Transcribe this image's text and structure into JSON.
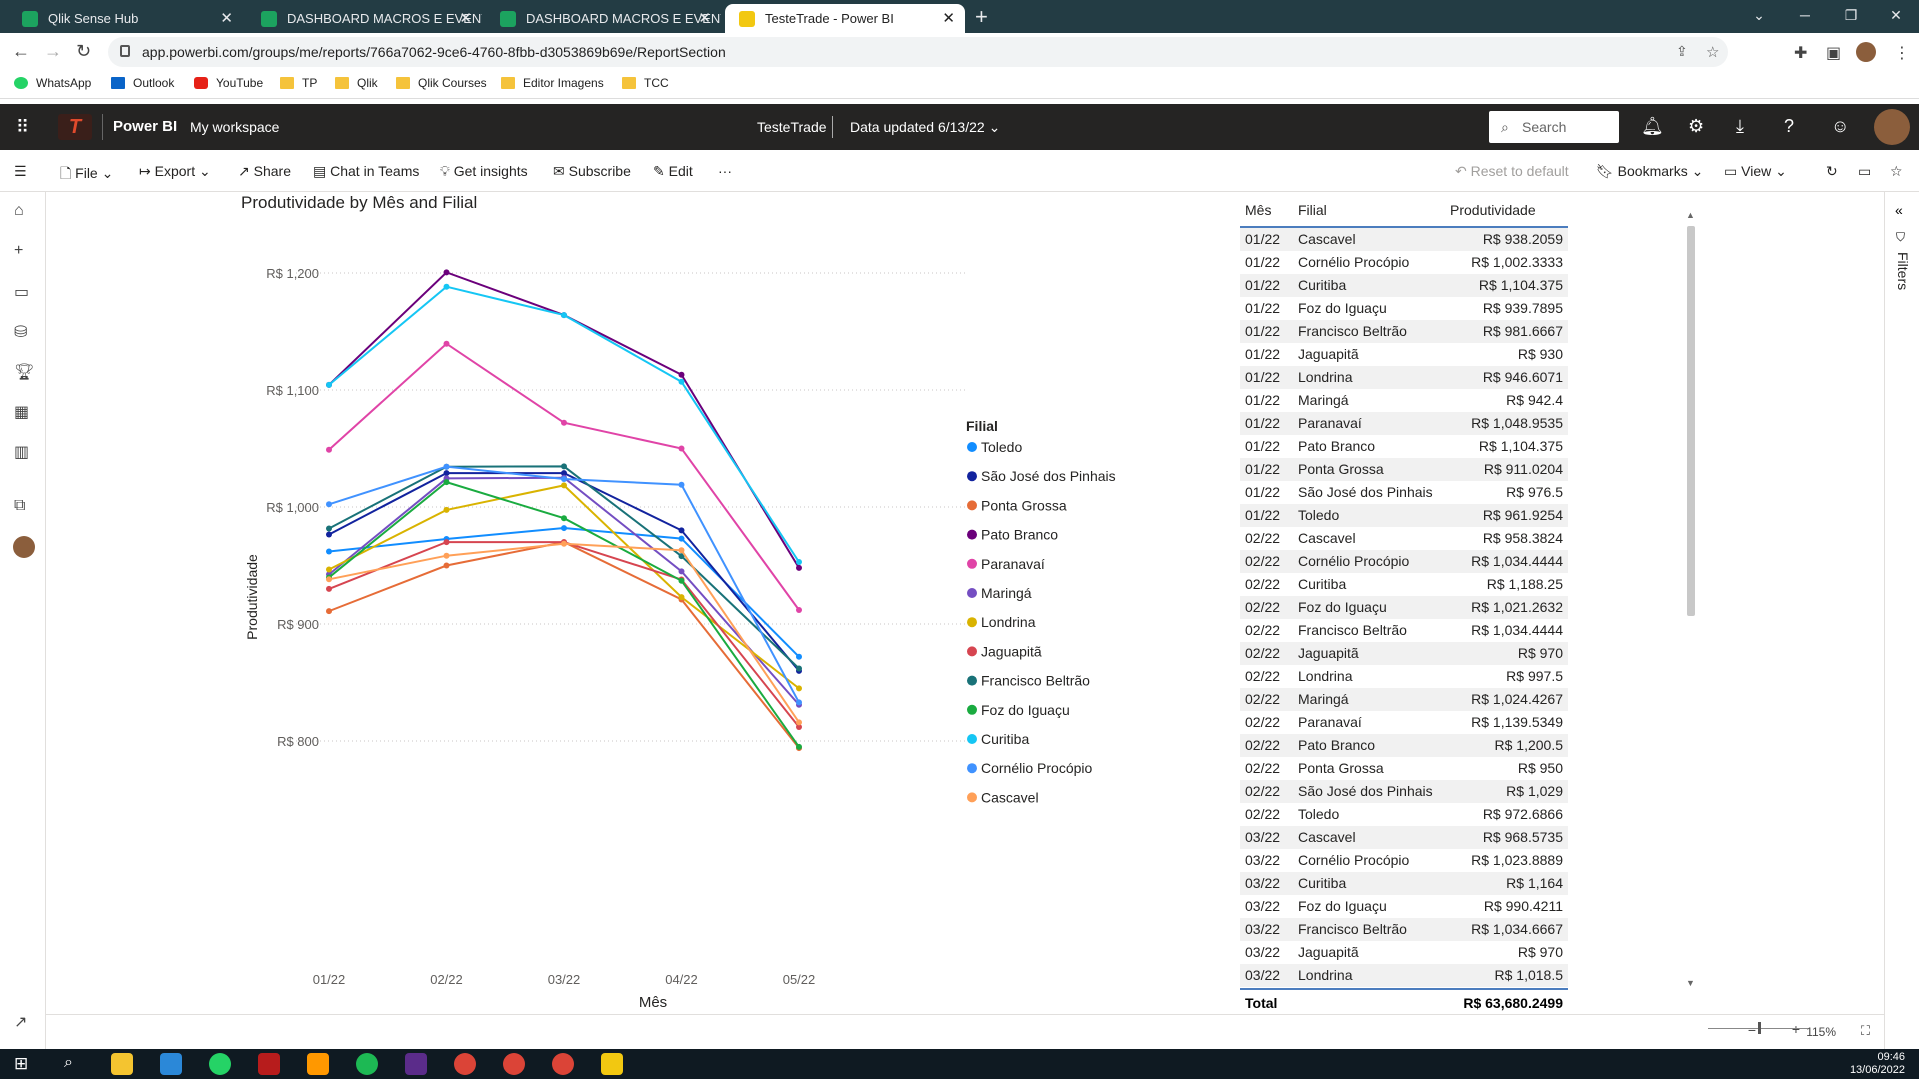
{
  "browser": {
    "tabs": [
      {
        "label": "Qlik Sense Hub"
      },
      {
        "label": "DASHBOARD MACROS E EVENTOS"
      },
      {
        "label": "DASHBOARD MACROS E EVENTOS"
      },
      {
        "label": "TesteTrade - Power BI"
      }
    ],
    "url": "app.powerbi.com/groups/me/reports/766a7062-9ce6-4760-8fbb-d3053869b69e/ReportSection",
    "bookmarks": [
      "WhatsApp",
      "Outlook",
      "YouTube",
      "TP",
      "Qlik",
      "Qlik Courses",
      "Editor Imagens",
      "TCC"
    ]
  },
  "header": {
    "app_name": "Power BI",
    "workspace": "My workspace",
    "report_name": "TesteTrade",
    "data_updated": "Data updated 6/13/22",
    "search_placeholder": "Search"
  },
  "actionbar": {
    "file": "File",
    "export": "Export",
    "share": "Share",
    "chat": "Chat in Teams",
    "insights": "Get insights",
    "subscribe": "Subscribe",
    "edit": "Edit",
    "more": "···",
    "reset": "Reset to default",
    "bookmarks": "Bookmarks",
    "view": "View"
  },
  "filters_label": "Filters",
  "chart_data": {
    "type": "line",
    "title": "Produtividade by Mês and Filial",
    "xlabel": "Mês",
    "ylabel": "Produtividade",
    "categories": [
      "01/22",
      "02/22",
      "03/22",
      "04/22",
      "05/22"
    ],
    "yticks": [
      "R$ 800",
      "R$ 900",
      "R$ 1,000",
      "R$ 1,100",
      "R$ 1,200"
    ],
    "ylim": [
      765,
      1235
    ],
    "legend_title": "Filial",
    "legend_position": "right",
    "grid": true,
    "series": [
      {
        "name": "Toledo",
        "color": "#118dff",
        "values": [
          961.9254,
          972.6866,
          982,
          973,
          872
        ]
      },
      {
        "name": "São José dos Pinhais",
        "color": "#12239e",
        "values": [
          976.5,
          1029,
          1029,
          980,
          860
        ]
      },
      {
        "name": "Ponta Grossa",
        "color": "#e66c37",
        "values": [
          911.0204,
          950,
          970,
          921,
          794
        ]
      },
      {
        "name": "Pato Branco",
        "color": "#6b007b",
        "values": [
          1104.375,
          1200.5,
          1164,
          1113,
          948
        ]
      },
      {
        "name": "Paranavaí",
        "color": "#e044a7",
        "values": [
          1048.9535,
          1139.5349,
          1072,
          1050,
          912
        ]
      },
      {
        "name": "Maringá",
        "color": "#744ec2",
        "values": [
          942.4,
          1024.4267,
          1025,
          945,
          831
        ]
      },
      {
        "name": "Londrina",
        "color": "#d9b300",
        "values": [
          946.6071,
          997.5,
          1018.5,
          923,
          845
        ]
      },
      {
        "name": "Jaguapitã",
        "color": "#d64550",
        "values": [
          930,
          970,
          970,
          938,
          812
        ]
      },
      {
        "name": "Francisco Beltrão",
        "color": "#197278",
        "values": [
          981.6667,
          1034.4444,
          1034.6667,
          958,
          862
        ]
      },
      {
        "name": "Foz do Iguaçu",
        "color": "#1aab40",
        "values": [
          939.7895,
          1021.2632,
          990.4211,
          937,
          795
        ]
      },
      {
        "name": "Curitiba",
        "color": "#15c6f4",
        "values": [
          1104.375,
          1188.25,
          1164,
          1107,
          953
        ]
      },
      {
        "name": "Cornélio Procópio",
        "color": "#4092ff",
        "values": [
          1002.3333,
          1034.4444,
          1023.8889,
          1019,
          833
        ]
      },
      {
        "name": "Cascavel",
        "color": "#ffa058",
        "values": [
          938.2059,
          958.3824,
          968.5735,
          963,
          816
        ]
      }
    ]
  },
  "table": {
    "headers": {
      "mes": "Mês",
      "filial": "Filial",
      "prod": "Produtividade"
    },
    "rows": [
      [
        "01/22",
        "Cascavel",
        "R$ 938.2059"
      ],
      [
        "01/22",
        "Cornélio Procópio",
        "R$ 1,002.3333"
      ],
      [
        "01/22",
        "Curitiba",
        "R$ 1,104.375"
      ],
      [
        "01/22",
        "Foz do Iguaçu",
        "R$ 939.7895"
      ],
      [
        "01/22",
        "Francisco Beltrão",
        "R$ 981.6667"
      ],
      [
        "01/22",
        "Jaguapitã",
        "R$ 930"
      ],
      [
        "01/22",
        "Londrina",
        "R$ 946.6071"
      ],
      [
        "01/22",
        "Maringá",
        "R$ 942.4"
      ],
      [
        "01/22",
        "Paranavaí",
        "R$ 1,048.9535"
      ],
      [
        "01/22",
        "Pato Branco",
        "R$ 1,104.375"
      ],
      [
        "01/22",
        "Ponta Grossa",
        "R$ 911.0204"
      ],
      [
        "01/22",
        "São José dos Pinhais",
        "R$ 976.5"
      ],
      [
        "01/22",
        "Toledo",
        "R$ 961.9254"
      ],
      [
        "02/22",
        "Cascavel",
        "R$ 958.3824"
      ],
      [
        "02/22",
        "Cornélio Procópio",
        "R$ 1,034.4444"
      ],
      [
        "02/22",
        "Curitiba",
        "R$ 1,188.25"
      ],
      [
        "02/22",
        "Foz do Iguaçu",
        "R$ 1,021.2632"
      ],
      [
        "02/22",
        "Francisco Beltrão",
        "R$ 1,034.4444"
      ],
      [
        "02/22",
        "Jaguapitã",
        "R$ 970"
      ],
      [
        "02/22",
        "Londrina",
        "R$ 997.5"
      ],
      [
        "02/22",
        "Maringá",
        "R$ 1,024.4267"
      ],
      [
        "02/22",
        "Paranavaí",
        "R$ 1,139.5349"
      ],
      [
        "02/22",
        "Pato Branco",
        "R$ 1,200.5"
      ],
      [
        "02/22",
        "Ponta Grossa",
        "R$ 950"
      ],
      [
        "02/22",
        "São José dos Pinhais",
        "R$ 1,029"
      ],
      [
        "02/22",
        "Toledo",
        "R$ 972.6866"
      ],
      [
        "03/22",
        "Cascavel",
        "R$ 968.5735"
      ],
      [
        "03/22",
        "Cornélio Procópio",
        "R$ 1,023.8889"
      ],
      [
        "03/22",
        "Curitiba",
        "R$ 1,164"
      ],
      [
        "03/22",
        "Foz do Iguaçu",
        "R$ 990.4211"
      ],
      [
        "03/22",
        "Francisco Beltrão",
        "R$ 1,034.6667"
      ],
      [
        "03/22",
        "Jaguapitã",
        "R$ 970"
      ],
      [
        "03/22",
        "Londrina",
        "R$ 1,018.5"
      ]
    ],
    "total_label": "Total",
    "total_value": "R$ 63,680.2499"
  },
  "zoom": "115%",
  "clock": {
    "time": "09:46",
    "date": "13/06/2022"
  }
}
